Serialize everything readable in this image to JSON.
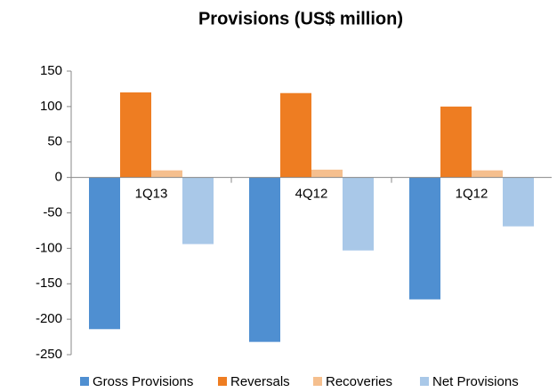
{
  "chart_data": {
    "type": "bar",
    "title": "Provisions (US$ million)",
    "categories": [
      "1Q13",
      "4Q12",
      "1Q12"
    ],
    "series": [
      {
        "name": "Gross Provisions",
        "color": "#4f8fd1",
        "values": [
          -214,
          -232,
          -172
        ]
      },
      {
        "name": "Reversals",
        "color": "#ee7d22",
        "values": [
          120,
          119,
          100
        ]
      },
      {
        "name": "Recoveries",
        "color": "#f5bf8e",
        "values": [
          10,
          11,
          10
        ]
      },
      {
        "name": "Net Provisions",
        "color": "#a9c8e8",
        "values": [
          -94,
          -103,
          -69
        ]
      }
    ],
    "ylim": [
      -250,
      150
    ],
    "yticks": [
      -250,
      -200,
      -150,
      -100,
      -50,
      0,
      50,
      100,
      150
    ],
    "legend": "bottom"
  }
}
